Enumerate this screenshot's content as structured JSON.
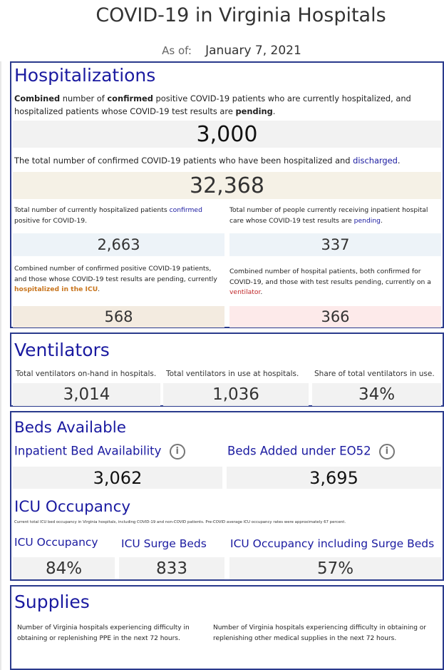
{
  "header": {
    "title": "COVID-19 in Virginia Hospitals",
    "as_of_label": "As of:",
    "as_of_date": "January 7, 2021"
  },
  "hospitalizations": {
    "title": "Hospitalizations",
    "combined_desc": {
      "p1": "Combined",
      "p2": " number of ",
      "p3": "confirmed",
      "p4": " positive COVID-19 patients who are currently hospitalized, and hospitalized patients whose COVID-19 test results are ",
      "p5": "pending",
      "p6": "."
    },
    "combined_value": "3,000",
    "discharged_desc": {
      "p1": "The total number of confirmed COVID-19 patients who have been hospitalized and ",
      "p2": "discharged",
      "p3": "."
    },
    "discharged_value": "32,368",
    "confirmed_desc": {
      "p1": "Total number of currently hospitalized patients ",
      "p2": "confirmed",
      "p3": " positive for COVID-19."
    },
    "confirmed_value": "2,663",
    "pending_desc": {
      "p1": "Total number of people currently receiving inpatient hospital care whose COVID-19 test results are ",
      "p2": "pending",
      "p3": "."
    },
    "pending_value": "337",
    "icu_desc": {
      "p1": "Combined number of confirmed positive COVID-19 patients, and those whose COVID-19 test results are pending, currently ",
      "p2": "hospitalized in the ICU",
      "p3": "."
    },
    "icu_value": "568",
    "vent_desc": {
      "p1": "Combined number of hospital patients, both confirmed for COVID-19, and those with test results pending, currently on a ",
      "p2": "ventilator",
      "p3": "."
    },
    "vent_value": "366"
  },
  "ventilators": {
    "title": "Ventilators",
    "onhand_label": "Total ventilators on-hand in hospitals.",
    "onhand_value": "3,014",
    "inuse_label": "Total ventilators in use at hospitals.",
    "inuse_value": "1,036",
    "share_label": "Share of total ventilators in use.",
    "share_value": "34%"
  },
  "beds": {
    "title": "Beds Available",
    "inpatient_label": "Inpatient Bed Availability",
    "inpatient_value": "3,062",
    "eo52_label": "Beds Added under EO52",
    "eo52_value": "3,695",
    "info_glyph": "i",
    "icu_title": "ICU Occupancy",
    "icu_note": "Current total ICU bed occupancy in Virginia hospitals, including COVID-19 and non-COVID patients. Pre-COVID average ICU occupancy rates were approximately 67 percent.",
    "icu_occ_label": "ICU Occupancy",
    "icu_occ_value": "84%",
    "surge_label": "ICU Surge Beds",
    "surge_value": "833",
    "icu_incl_label": "ICU Occupancy including Surge Beds",
    "icu_incl_value": "57%"
  },
  "supplies": {
    "title": "Supplies",
    "ppe_desc": "Number of Virginia hospitals experiencing difficulty in obtaining or replenishing PPE in the next 72 hours.",
    "other_desc": "Number of Virginia hospitals experiencing difficulty in obtaining or replenishing other medical supplies in the next 72 hours."
  },
  "colors": {
    "title_blue": "#1a1aa0",
    "panel_border": "#2a3a8c",
    "box_gray": "#f2f2f2",
    "box_beige": "#f5f1e6",
    "box_blue": "#edf3f8",
    "box_tan": "#f3ebe0",
    "box_pink": "#fdeaea"
  }
}
